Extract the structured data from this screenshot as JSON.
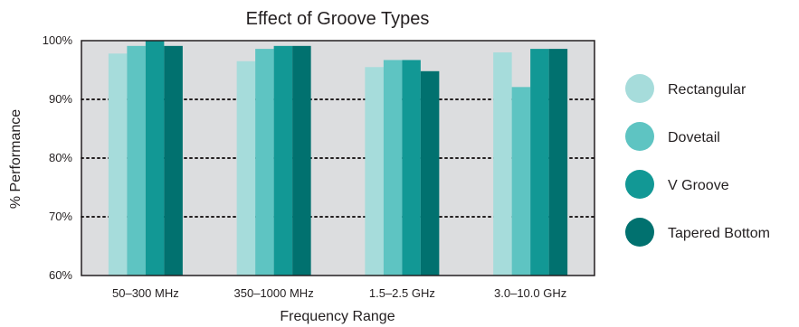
{
  "chart_data": {
    "type": "bar",
    "title": "Effect of Groove Types",
    "xlabel": "Frequency Range",
    "ylabel": "% Performance",
    "categories": [
      "50–300 MHz",
      "350–1000 MHz",
      "1.5–2.5 GHz",
      "3.0–10.0 GHz"
    ],
    "series": [
      {
        "name": "Rectangular",
        "color": "#a6dcdb",
        "values": [
          97.8,
          96.5,
          95.5,
          98.0
        ]
      },
      {
        "name": "Dovetail",
        "color": "#5ec4c2",
        "values": [
          99.1,
          98.6,
          96.7,
          92.1
        ]
      },
      {
        "name": "V Groove",
        "color": "#129895",
        "values": [
          100.0,
          99.1,
          96.7,
          98.6
        ]
      },
      {
        "name": "Tapered Bottom",
        "color": "#01716f",
        "values": [
          99.1,
          99.1,
          94.8,
          98.6
        ]
      }
    ],
    "ylim": [
      60,
      100
    ],
    "yticks": [
      "60%",
      "70%",
      "80%",
      "90%",
      "100%"
    ],
    "ytick_values": [
      60,
      70,
      80,
      90,
      100
    ],
    "grid": "dotted horizontal lines at 70%, 80%, 90%",
    "legend_position": "right",
    "plot_background": "#dcdddf",
    "grid_color": "#231f20"
  }
}
